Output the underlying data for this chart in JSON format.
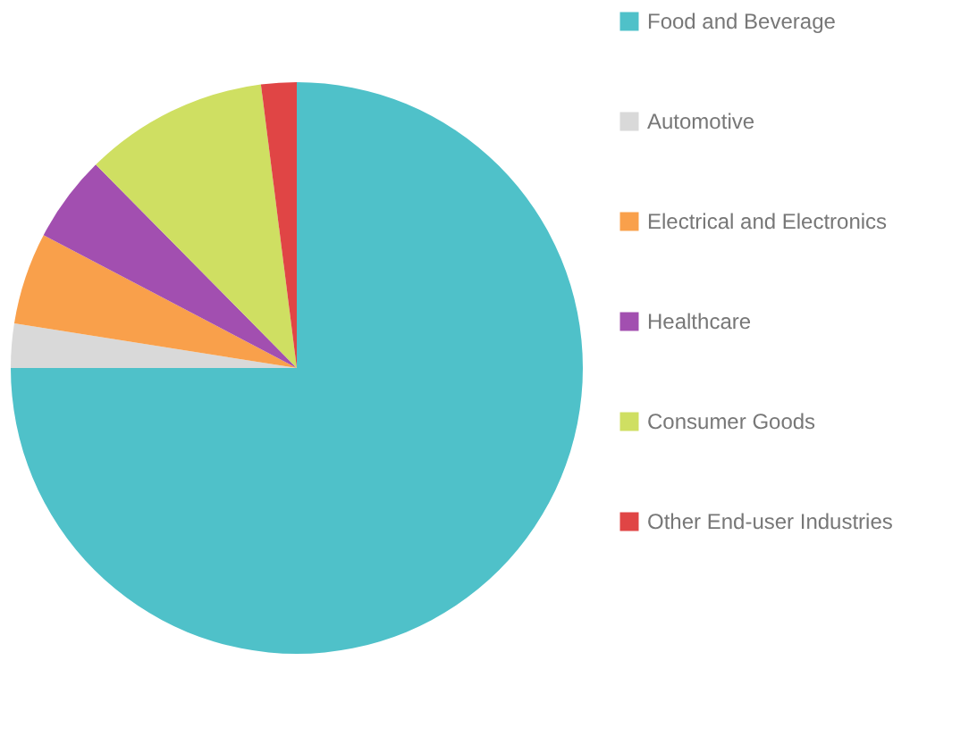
{
  "chart_data": {
    "type": "pie",
    "categories": [
      "Food and Beverage",
      "Automotive",
      "Electrical and Electronics",
      "Healthcare",
      "Consumer Goods",
      "Other End-user Industries"
    ],
    "values": [
      75,
      2.5,
      5.2,
      4.9,
      10.4,
      2.0
    ],
    "colors": [
      "#4fc1c9",
      "#d9d9d9",
      "#f9a04b",
      "#a24fb0",
      "#cfdf62",
      "#e04545"
    ],
    "legend": "right"
  }
}
